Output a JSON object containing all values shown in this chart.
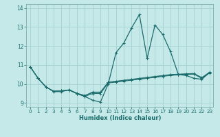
{
  "xlabel": "Humidex (Indice chaleur)",
  "xlim": [
    -0.5,
    23.5
  ],
  "ylim": [
    8.8,
    14.2
  ],
  "yticks": [
    9,
    10,
    11,
    12,
    13,
    14
  ],
  "xticks": [
    0,
    1,
    2,
    3,
    4,
    5,
    6,
    7,
    8,
    9,
    10,
    11,
    12,
    13,
    14,
    15,
    16,
    17,
    18,
    19,
    20,
    21,
    22,
    23
  ],
  "background_color": "#c5e8e8",
  "grid_color": "#a8d4d4",
  "line_color": "#1a6b6b",
  "main_line": [
    10.9,
    10.3,
    9.85,
    9.6,
    9.6,
    9.7,
    9.5,
    9.35,
    9.15,
    9.05,
    10.0,
    11.65,
    12.15,
    12.95,
    13.65,
    11.35,
    13.1,
    12.6,
    11.7,
    10.5,
    10.45,
    10.3,
    10.25,
    10.6
  ],
  "extra_lines": [
    [
      10.9,
      10.3,
      9.85,
      9.62,
      9.65,
      9.68,
      9.48,
      9.35,
      9.5,
      9.5,
      10.05,
      10.1,
      10.15,
      10.2,
      10.25,
      10.3,
      10.35,
      10.4,
      10.45,
      10.48,
      10.5,
      10.52,
      10.3,
      10.58
    ],
    [
      10.9,
      10.3,
      9.85,
      9.62,
      9.65,
      9.68,
      9.5,
      9.38,
      9.55,
      9.55,
      10.08,
      10.13,
      10.18,
      10.23,
      10.28,
      10.33,
      10.38,
      10.43,
      10.48,
      10.5,
      10.52,
      10.54,
      10.32,
      10.6
    ],
    [
      10.9,
      10.3,
      9.85,
      9.62,
      9.65,
      9.68,
      9.52,
      9.4,
      9.58,
      9.58,
      10.1,
      10.15,
      10.2,
      10.25,
      10.3,
      10.35,
      10.4,
      10.45,
      10.5,
      10.52,
      10.54,
      10.56,
      10.34,
      10.62
    ]
  ]
}
